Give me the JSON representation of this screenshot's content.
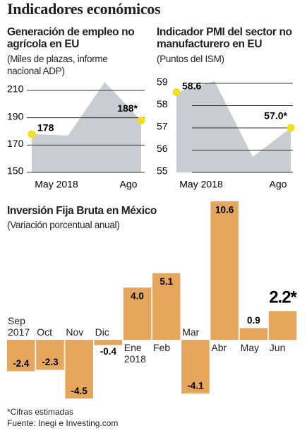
{
  "title": "Indicadores económicos",
  "chart_data": [
    {
      "type": "area",
      "title": "Generación de empleo no agrícola en EU",
      "subtitle": "(Miles de plazas, informe nacional ADP)",
      "categories": [
        "May 2018",
        null,
        null,
        "Ago"
      ],
      "values": [
        178,
        177,
        216,
        188
      ],
      "value_labels": [
        "178",
        null,
        null,
        "188*"
      ],
      "ylim": [
        150,
        218
      ],
      "yticks": [
        150,
        170,
        190,
        210
      ],
      "grid": true,
      "color": "#c9cdd1",
      "marker_color": "#f2e01c"
    },
    {
      "type": "area",
      "title": "Indicador PMI del sector no manufacturero en EU",
      "subtitle": "(Puntos del ISM)",
      "categories": [
        "May 2018",
        null,
        null,
        "Ago"
      ],
      "values": [
        58.6,
        59.1,
        55.7,
        57.0
      ],
      "value_labels": [
        "58.6",
        null,
        null,
        "57.0*"
      ],
      "ylim": [
        55,
        59.3
      ],
      "yticks": [
        55,
        56,
        57,
        58,
        59
      ],
      "grid": true,
      "color": "#c9cdd1",
      "marker_color": "#f2e01c"
    },
    {
      "type": "bar",
      "title": "Inversión Fija Bruta en México",
      "subtitle": "(Variación porcentual anual)",
      "categories": [
        "Sep 2017",
        "Oct",
        "Nov",
        "Dic",
        "Ene 2018",
        "Feb",
        "Mar",
        "Abr",
        "May",
        "Jun"
      ],
      "values": [
        -2.4,
        -2.3,
        -4.5,
        -0.4,
        4.0,
        5.1,
        -4.1,
        10.6,
        0.9,
        2.2
      ],
      "value_labels": [
        "-2.4",
        "-2.3",
        "-4.5",
        "-0.4",
        "4.0",
        "5.1",
        "-4.1",
        "10.6",
        "0.9",
        "2.2*"
      ],
      "color": "#e6a65c"
    }
  ],
  "notes": [
    "*Cifras estimadas",
    "Fuente: Inegi e Investing.com"
  ]
}
